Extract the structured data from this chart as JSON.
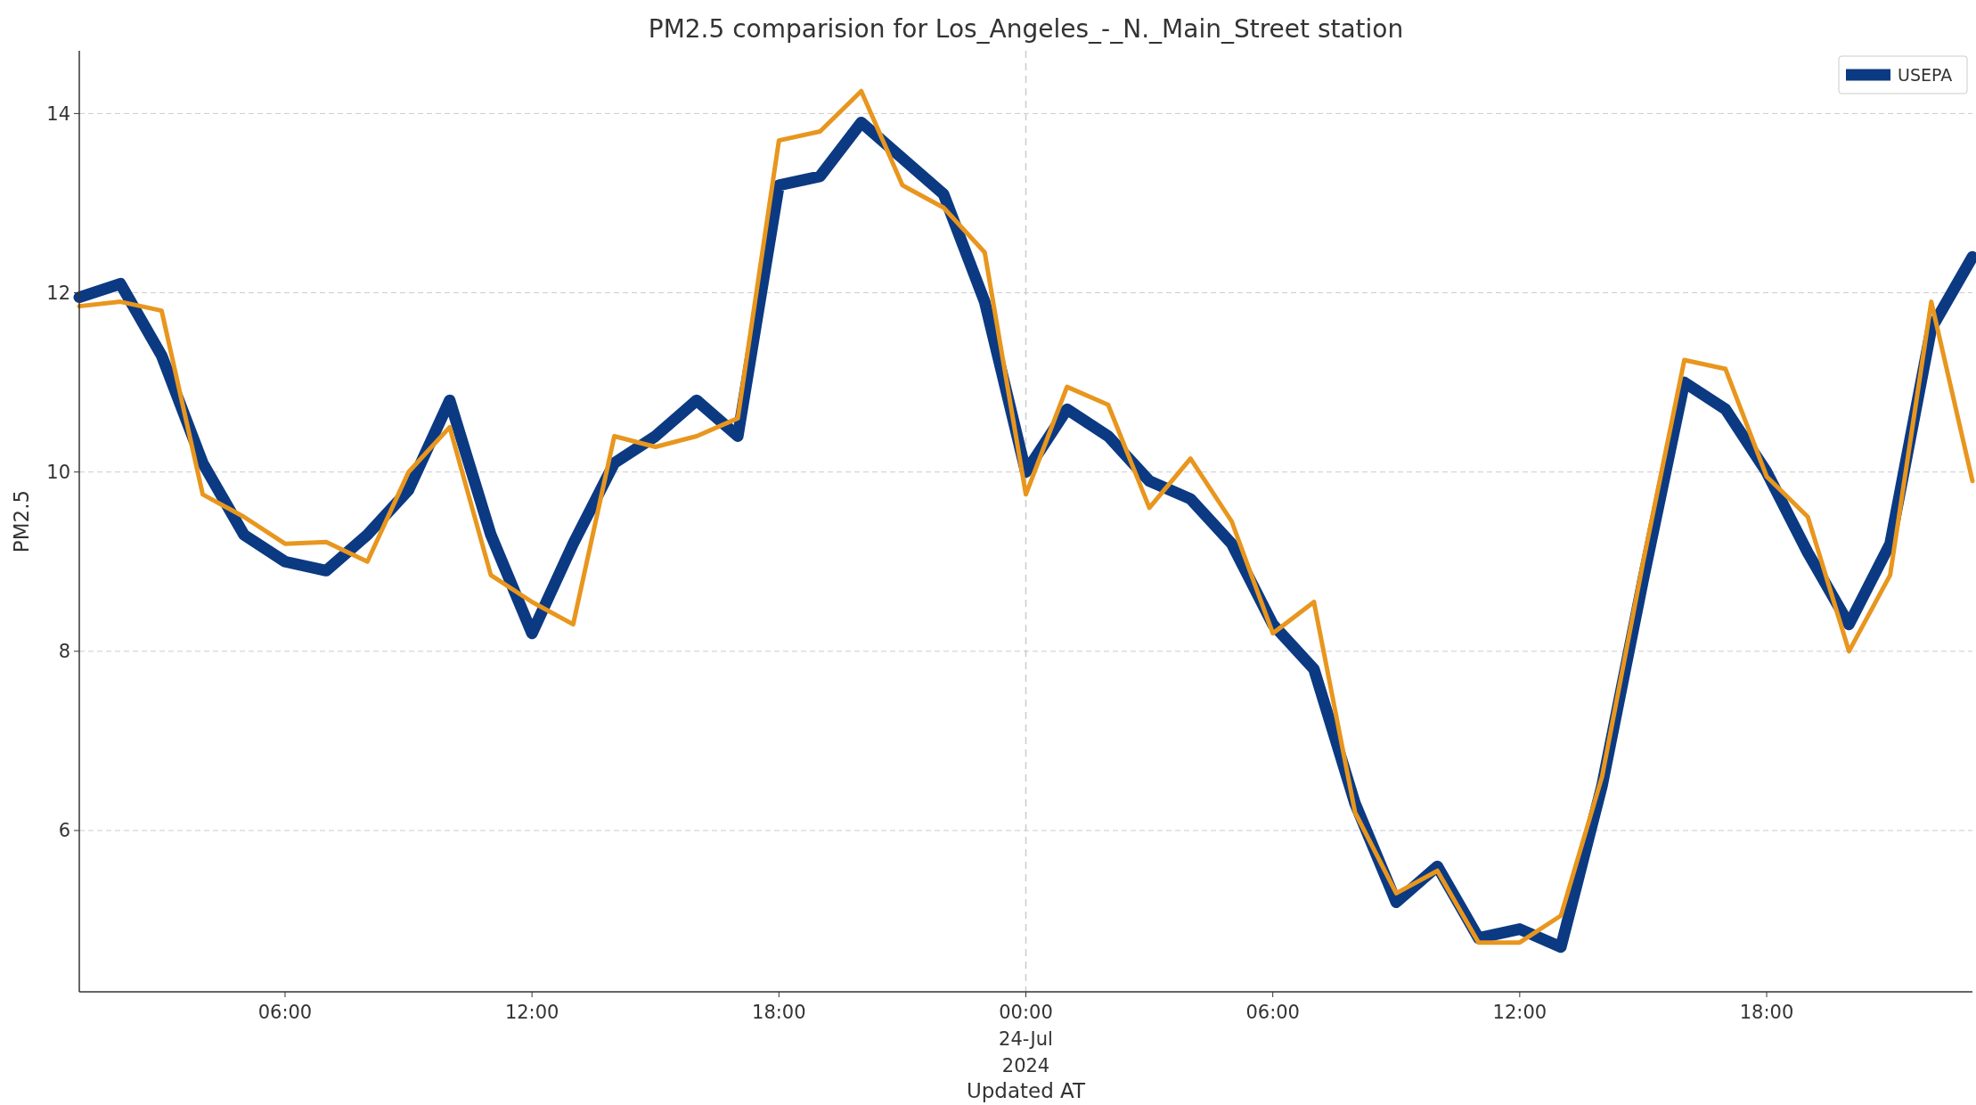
{
  "chart_data": {
    "type": "line",
    "title": "PM2.5 comparision for Los_Angeles_-_N._Main_Street station",
    "xlabel": "Updated AT",
    "ylabel": "PM2.5",
    "x": [
      "2024-07-23T01:00",
      "2024-07-23T02:00",
      "2024-07-23T03:00",
      "2024-07-23T04:00",
      "2024-07-23T05:00",
      "2024-07-23T06:00",
      "2024-07-23T07:00",
      "2024-07-23T08:00",
      "2024-07-23T09:00",
      "2024-07-23T10:00",
      "2024-07-23T11:00",
      "2024-07-23T12:00",
      "2024-07-23T13:00",
      "2024-07-23T14:00",
      "2024-07-23T15:00",
      "2024-07-23T16:00",
      "2024-07-23T17:00",
      "2024-07-23T18:00",
      "2024-07-23T19:00",
      "2024-07-23T20:00",
      "2024-07-23T21:00",
      "2024-07-23T22:00",
      "2024-07-23T23:00",
      "2024-07-24T00:00",
      "2024-07-24T01:00",
      "2024-07-24T02:00",
      "2024-07-24T03:00",
      "2024-07-24T04:00",
      "2024-07-24T05:00",
      "2024-07-24T06:00",
      "2024-07-24T07:00",
      "2024-07-24T08:00",
      "2024-07-24T09:00",
      "2024-07-24T10:00",
      "2024-07-24T11:00",
      "2024-07-24T12:00",
      "2024-07-24T13:00",
      "2024-07-24T14:00",
      "2024-07-24T15:00",
      "2024-07-24T16:00",
      "2024-07-24T17:00",
      "2024-07-24T18:00",
      "2024-07-24T19:00",
      "2024-07-24T20:00",
      "2024-07-24T21:00",
      "2024-07-24T22:00",
      "2024-07-24T23:00"
    ],
    "series": [
      {
        "name": "USEPA",
        "color": "#0b3a82",
        "values": [
          11.95,
          12.1,
          11.3,
          10.1,
          9.3,
          9.0,
          8.9,
          9.3,
          9.8,
          10.8,
          9.3,
          8.2,
          9.2,
          10.1,
          10.4,
          10.8,
          10.4,
          13.2,
          13.3,
          13.9,
          13.5,
          13.1,
          11.9,
          10.0,
          10.7,
          10.4,
          9.9,
          9.7,
          9.2,
          8.3,
          7.8,
          6.3,
          5.2,
          5.6,
          4.8,
          4.9,
          4.7,
          6.5,
          8.8,
          11.0,
          10.7,
          10.0,
          9.1,
          8.3,
          9.2,
          11.6,
          12.4
        ]
      },
      {
        "color": "#e8961e",
        "values": [
          11.85,
          11.9,
          11.8,
          9.75,
          9.5,
          9.2,
          9.22,
          9.0,
          10.0,
          10.5,
          8.85,
          8.55,
          8.3,
          10.4,
          10.28,
          10.4,
          10.6,
          13.7,
          13.8,
          14.25,
          13.2,
          12.95,
          12.45,
          9.75,
          10.95,
          10.75,
          9.6,
          10.15,
          9.45,
          8.2,
          8.55,
          6.2,
          5.3,
          5.55,
          4.75,
          4.75,
          5.05,
          6.6,
          9.0,
          11.25,
          11.15,
          9.95,
          9.5,
          8.0,
          8.85,
          11.9,
          9.9
        ]
      }
    ],
    "xlim": [
      "2024-07-23T01:00",
      "2024-07-24T23:00"
    ],
    "xticks": [
      {
        "value": "2024-07-23T06:00",
        "label": "06:00"
      },
      {
        "value": "2024-07-23T12:00",
        "label": "12:00"
      },
      {
        "value": "2024-07-23T18:00",
        "label": "18:00"
      },
      {
        "value": "2024-07-24T00:00",
        "label": "00:00\n24-Jul\n2024"
      },
      {
        "value": "2024-07-24T06:00",
        "label": "06:00"
      },
      {
        "value": "2024-07-24T12:00",
        "label": "12:00"
      },
      {
        "value": "2024-07-24T18:00",
        "label": "18:00"
      }
    ],
    "ylim": [
      4.2,
      14.7
    ],
    "yticks": [
      6,
      8,
      10,
      12,
      14
    ],
    "ref_lines": [
      {
        "axis": "x",
        "value": "2024-07-24T00:00",
        "color": "#cccccc",
        "line_style": "dashed"
      }
    ],
    "grid": "y",
    "legend": "top right",
    "line_style": "solid",
    "marker": "none"
  }
}
